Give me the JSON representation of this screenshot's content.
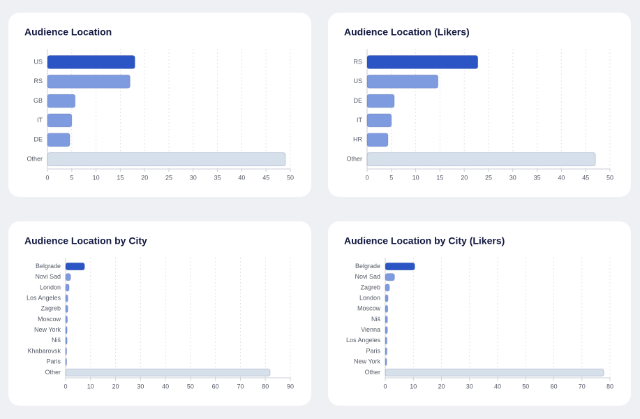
{
  "charts": [
    {
      "chart_data": {
        "type": "hbar",
        "title": "Audience Location",
        "categories": [
          "US",
          "RS",
          "GB",
          "IT",
          "DE",
          "Other"
        ],
        "values": [
          18.0,
          17.0,
          5.7,
          5.0,
          4.6,
          49.0
        ],
        "colors": [
          "#2b55c5",
          "#7f9be0",
          "#7f9be0",
          "#7f9be0",
          "#7f9be0",
          "#d6e0ea"
        ],
        "xlim": [
          0,
          50
        ],
        "xticks": [
          0,
          5,
          10,
          15,
          20,
          25,
          30,
          35,
          40,
          45,
          50
        ],
        "grid": true
      }
    },
    {
      "chart_data": {
        "type": "hbar",
        "title": "Audience Location (Likers)",
        "categories": [
          "RS",
          "US",
          "DE",
          "IT",
          "HR",
          "Other"
        ],
        "values": [
          22.8,
          14.6,
          5.6,
          5.0,
          4.3,
          47.0
        ],
        "colors": [
          "#2b55c5",
          "#7f9be0",
          "#7f9be0",
          "#7f9be0",
          "#7f9be0",
          "#d6e0ea"
        ],
        "xlim": [
          0,
          50
        ],
        "xticks": [
          0,
          5,
          10,
          15,
          20,
          25,
          30,
          35,
          40,
          45,
          50
        ],
        "grid": true
      }
    },
    {
      "chart_data": {
        "type": "hbar",
        "title": "Audience Location by City",
        "categories": [
          "Belgrade",
          "Novi Sad",
          "London",
          "Los Angeles",
          "Zagreb",
          "Moscow",
          "New York",
          "Niš",
          "Khabarovsk",
          "Paris",
          "Other"
        ],
        "values": [
          7.6,
          2.0,
          1.4,
          0.9,
          0.9,
          0.7,
          0.6,
          0.6,
          0.4,
          0.4,
          81.9
        ],
        "colors": [
          "#2b55c5",
          "#7f9be0",
          "#7f9be0",
          "#7f9be0",
          "#7f9be0",
          "#7f9be0",
          "#7f9be0",
          "#7f9be0",
          "#7f9be0",
          "#7f9be0",
          "#d6e0ea"
        ],
        "xlim": [
          0,
          90
        ],
        "xticks": [
          0,
          10,
          20,
          30,
          40,
          50,
          60,
          70,
          80,
          90
        ],
        "grid": true
      }
    },
    {
      "chart_data": {
        "type": "hbar",
        "title": "Audience Location by City (Likers)",
        "categories": [
          "Belgrade",
          "Novi Sad",
          "Zagreb",
          "London",
          "Moscow",
          "Niš",
          "Vienna",
          "Los Angeles",
          "Paris",
          "New York",
          "Other"
        ],
        "values": [
          10.5,
          3.3,
          1.5,
          1.0,
          0.9,
          0.8,
          0.8,
          0.6,
          0.6,
          0.5,
          77.8
        ],
        "colors": [
          "#2b55c5",
          "#7f9be0",
          "#7f9be0",
          "#7f9be0",
          "#7f9be0",
          "#7f9be0",
          "#7f9be0",
          "#7f9be0",
          "#7f9be0",
          "#7f9be0",
          "#d6e0ea"
        ],
        "xlim": [
          0,
          80
        ],
        "xticks": [
          0,
          10,
          20,
          30,
          40,
          50,
          60,
          70,
          80
        ],
        "grid": true
      }
    }
  ]
}
